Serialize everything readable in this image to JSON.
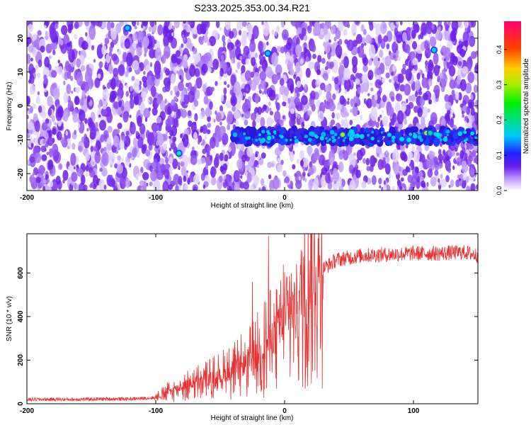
{
  "title": "S233.2025.353.00.34.R21",
  "colors": {
    "signal": "#e83030",
    "heat_low": "#ffffff",
    "heat_mid": "#6a20e8",
    "frame": "#000000"
  },
  "chart_data": [
    {
      "type": "heatmap",
      "xlabel": "Height of straight line (km)",
      "ylabel": "Frequency (Hz)",
      "xlim": [
        -200,
        150
      ],
      "ylim": [
        -25,
        25
      ],
      "x_ticks": [
        -200,
        -100,
        0,
        100
      ],
      "y_ticks": [
        -20,
        -10,
        0,
        10,
        20
      ],
      "grid": false,
      "colorbar": {
        "label": "Normalized spectral amplitude",
        "range": [
          0,
          0.48
        ],
        "ticks": [
          "0.0",
          "0.1",
          "0.2",
          "0.3",
          "0.4"
        ],
        "colormap": "white-purple-blue-cyan-green-yellow-red-magenta"
      },
      "features": [
        {
          "x": 45,
          "y": -8.5,
          "amplitude": 0.22
        },
        {
          "x": 110,
          "y": -8,
          "amplitude": 0.25
        },
        {
          "x": 113,
          "y": -8,
          "amplitude": 0.2
        },
        {
          "x": -82,
          "y": -14,
          "amplitude": 0.15
        },
        {
          "x": -12,
          "y": -9.5,
          "amplitude": 0.14
        },
        {
          "x": -122,
          "y": 23,
          "amplitude": 0.12
        },
        {
          "x": -13,
          "y": 15.5,
          "amplitude": 0.12
        },
        {
          "x": 116,
          "y": 16.5,
          "amplitude": 0.11
        }
      ],
      "band": {
        "x_range": [
          -40,
          150
        ],
        "y_center": -9,
        "description": "persistent emission band"
      }
    },
    {
      "type": "line",
      "xlabel": "Height of straight line (km)",
      "ylabel": "SNR (10 * v/v)",
      "xlim": [
        -200,
        150
      ],
      "ylim": [
        0,
        780
      ],
      "x_ticks": [
        -200,
        -100,
        0,
        100
      ],
      "y_ticks": [
        0,
        200,
        400,
        600
      ],
      "grid": false,
      "series": [
        {
          "x": [
            -200,
            -180,
            -160,
            -140,
            -120,
            -100,
            -90,
            -80,
            -70,
            -60,
            -50,
            -40,
            -30,
            -20,
            -10,
            0,
            10,
            20,
            30,
            40,
            50,
            60,
            80,
            100,
            120,
            140,
            150
          ],
          "y": [
            20,
            20,
            20,
            22,
            22,
            28,
            55,
            80,
            95,
            110,
            130,
            150,
            180,
            230,
            300,
            390,
            460,
            550,
            620,
            660,
            670,
            680,
            685,
            690,
            690,
            695,
            680
          ],
          "peaks": [
            {
              "x": -12.5,
              "y": 770
            },
            {
              "x": -25,
              "y": 560
            }
          ]
        }
      ]
    }
  ]
}
